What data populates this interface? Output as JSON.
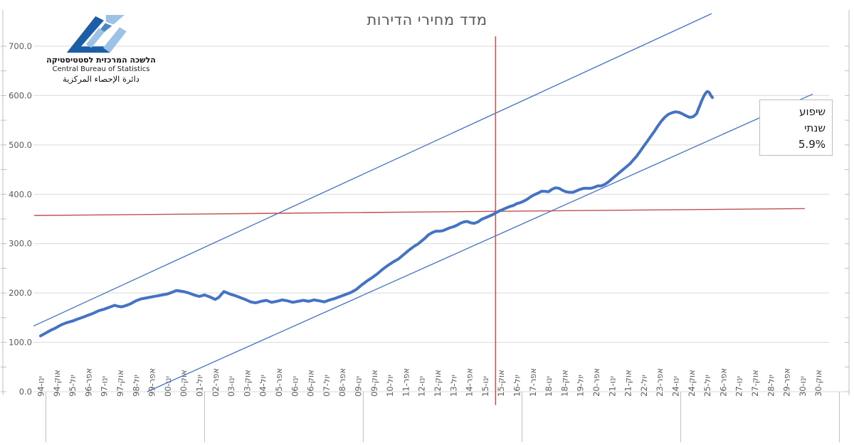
{
  "logo": {
    "hebrew_name": "הלשכה המרכזית לסטטיסטיקה",
    "english_name": "Central Bureau of Statistics",
    "arabic_name": "دائرة الإحصاء المركزية",
    "colors": {
      "dark_blue": "#1B5DA6",
      "mid_blue": "#4E86C6",
      "light_blue": "#9CC3E5"
    }
  },
  "chart_data": {
    "type": "line",
    "title": "מדד מחירי הדירות",
    "x_unit": "months since Jan-1994",
    "x_tick_step_months": 9,
    "grid": true,
    "legend": "none",
    "x_axis": {
      "labels": [
        "ינו-94",
        "אוק-94",
        "יול-95",
        "אפר-96",
        "ינו-97",
        "אוק-97",
        "יול-98",
        "אפר-99",
        "ינו-00",
        "אוק-00",
        "יול-01",
        "אפר-02",
        "ינו-03",
        "אוק-03",
        "יול-04",
        "אפר-05",
        "ינו-06",
        "אוק-06",
        "יול-07",
        "אפר-08",
        "ינו-09",
        "אוק-09",
        "יול-10",
        "אפר-11",
        "ינו-12",
        "אוק-12",
        "יול-13",
        "אפר-14",
        "ינו-15",
        "אוק-15",
        "יול-16",
        "אפר-17",
        "ינו-18",
        "אוק-18",
        "יול-19",
        "אפר-20",
        "ינו-21",
        "אוק-21",
        "יול-22",
        "אפר-23",
        "ינו-24",
        "אוק-24",
        "יול-25",
        "אפר-26",
        "ינו-27",
        "אוק-27",
        "יול-28",
        "אפר-29",
        "ינו-30",
        "אוק-30"
      ],
      "separator_months": [
        3,
        93,
        183,
        273,
        363,
        453
      ]
    },
    "y_axis": {
      "min": 0,
      "max": 700,
      "major_step": 100,
      "minor_step": 50,
      "major_labels": [
        "0.0",
        "100.0",
        "200.0",
        "300.0",
        "400.0",
        "500.0",
        "600.0",
        "700.0"
      ],
      "major_values": [
        0,
        100,
        200,
        300,
        400,
        500,
        600,
        700
      ]
    },
    "series": [
      {
        "name": "מדד מחירי הדירות",
        "color": "#4472C4",
        "points": [
          [
            0,
            113
          ],
          [
            2,
            117
          ],
          [
            4,
            121
          ],
          [
            6,
            125
          ],
          [
            8,
            128
          ],
          [
            10,
            132
          ],
          [
            12,
            136
          ],
          [
            15,
            140
          ],
          [
            18,
            143
          ],
          [
            21,
            147
          ],
          [
            24,
            151
          ],
          [
            27,
            155
          ],
          [
            30,
            159
          ],
          [
            33,
            164
          ],
          [
            36,
            167
          ],
          [
            39,
            171
          ],
          [
            42,
            175
          ],
          [
            44,
            173
          ],
          [
            46,
            172
          ],
          [
            48,
            174
          ],
          [
            51,
            178
          ],
          [
            54,
            184
          ],
          [
            57,
            188
          ],
          [
            60,
            190
          ],
          [
            63,
            192
          ],
          [
            66,
            194
          ],
          [
            69,
            196
          ],
          [
            72,
            198
          ],
          [
            75,
            202
          ],
          [
            77,
            205
          ],
          [
            79,
            204
          ],
          [
            81,
            203
          ],
          [
            84,
            200
          ],
          [
            87,
            196
          ],
          [
            90,
            193
          ],
          [
            93,
            196
          ],
          [
            96,
            192
          ],
          [
            99,
            187
          ],
          [
            101,
            191
          ],
          [
            103,
            199
          ],
          [
            104,
            203
          ],
          [
            106,
            200
          ],
          [
            108,
            197
          ],
          [
            110,
            195
          ],
          [
            113,
            191
          ],
          [
            116,
            187
          ],
          [
            119,
            182
          ],
          [
            122,
            180
          ],
          [
            125,
            183
          ],
          [
            128,
            185
          ],
          [
            131,
            181
          ],
          [
            134,
            183
          ],
          [
            137,
            186
          ],
          [
            140,
            184
          ],
          [
            143,
            181
          ],
          [
            146,
            183
          ],
          [
            149,
            185
          ],
          [
            152,
            183
          ],
          [
            155,
            186
          ],
          [
            158,
            184
          ],
          [
            161,
            182
          ],
          [
            164,
            186
          ],
          [
            167,
            189
          ],
          [
            170,
            193
          ],
          [
            173,
            197
          ],
          [
            176,
            201
          ],
          [
            179,
            207
          ],
          [
            182,
            216
          ],
          [
            185,
            224
          ],
          [
            188,
            231
          ],
          [
            191,
            239
          ],
          [
            194,
            248
          ],
          [
            197,
            256
          ],
          [
            200,
            263
          ],
          [
            203,
            269
          ],
          [
            206,
            278
          ],
          [
            209,
            287
          ],
          [
            212,
            295
          ],
          [
            214,
            299
          ],
          [
            216,
            305
          ],
          [
            218,
            311
          ],
          [
            220,
            318
          ],
          [
            222,
            322
          ],
          [
            224,
            325
          ],
          [
            226,
            325
          ],
          [
            228,
            326
          ],
          [
            230,
            329
          ],
          [
            232,
            332
          ],
          [
            234,
            334
          ],
          [
            236,
            337
          ],
          [
            238,
            341
          ],
          [
            240,
            344
          ],
          [
            242,
            345
          ],
          [
            244,
            342
          ],
          [
            246,
            341
          ],
          [
            248,
            344
          ],
          [
            250,
            349
          ],
          [
            252,
            352
          ],
          [
            254,
            355
          ],
          [
            256,
            358
          ],
          [
            258,
            362
          ],
          [
            260,
            366
          ],
          [
            262,
            369
          ],
          [
            264,
            372
          ],
          [
            266,
            375
          ],
          [
            268,
            377
          ],
          [
            270,
            381
          ],
          [
            272,
            383
          ],
          [
            274,
            386
          ],
          [
            276,
            390
          ],
          [
            278,
            395
          ],
          [
            280,
            399
          ],
          [
            282,
            402
          ],
          [
            284,
            406
          ],
          [
            286,
            406
          ],
          [
            288,
            405
          ],
          [
            290,
            410
          ],
          [
            292,
            413
          ],
          [
            294,
            412
          ],
          [
            296,
            408
          ],
          [
            298,
            405
          ],
          [
            300,
            404
          ],
          [
            302,
            404
          ],
          [
            304,
            407
          ],
          [
            306,
            410
          ],
          [
            308,
            412
          ],
          [
            310,
            412
          ],
          [
            312,
            412
          ],
          [
            314,
            414
          ],
          [
            316,
            417
          ],
          [
            318,
            417
          ],
          [
            320,
            420
          ],
          [
            322,
            425
          ],
          [
            324,
            431
          ],
          [
            326,
            437
          ],
          [
            328,
            443
          ],
          [
            330,
            449
          ],
          [
            332,
            455
          ],
          [
            334,
            461
          ],
          [
            336,
            469
          ],
          [
            338,
            477
          ],
          [
            340,
            487
          ],
          [
            342,
            497
          ],
          [
            344,
            507
          ],
          [
            346,
            517
          ],
          [
            348,
            527
          ],
          [
            350,
            538
          ],
          [
            352,
            548
          ],
          [
            354,
            556
          ],
          [
            356,
            562
          ],
          [
            358,
            565
          ],
          [
            360,
            567
          ],
          [
            362,
            566
          ],
          [
            364,
            563
          ],
          [
            366,
            559
          ],
          [
            368,
            556
          ],
          [
            370,
            557
          ],
          [
            372,
            563
          ],
          [
            373,
            572
          ],
          [
            374,
            581
          ],
          [
            375,
            590
          ],
          [
            376,
            598
          ],
          [
            377,
            604
          ],
          [
            378,
            608
          ],
          [
            379,
            607
          ],
          [
            380,
            601
          ],
          [
            381,
            596
          ]
        ]
      }
    ],
    "trend_lines": [
      {
        "name": "upper-channel",
        "color": "#4472C4",
        "x1_month": -4.0,
        "value1": 133,
        "x2_month": 380.6,
        "value2": 766
      },
      {
        "name": "lower-channel",
        "color": "#4472C4",
        "x1_month": 60.5,
        "value1": 0,
        "x2_month": 437.9,
        "value2": 603
      }
    ],
    "crosshair": {
      "color": "#C0504D",
      "vertical": {
        "month": 258,
        "value_bottom": -27,
        "value_top": 720
      },
      "horizontal": {
        "value_left": 357,
        "value_right": 371,
        "x1_month": -3.6,
        "x2_month": 433.4
      }
    },
    "annotation": {
      "line1": "שיפוע",
      "line2": "שנתי",
      "line3": "5.9%"
    },
    "colors": {
      "gridline": "#D9D9D9",
      "axis": "#BFBFBF",
      "tick_label": "#595959",
      "series": "#4472C4",
      "crosshair": "#C0504D"
    }
  }
}
